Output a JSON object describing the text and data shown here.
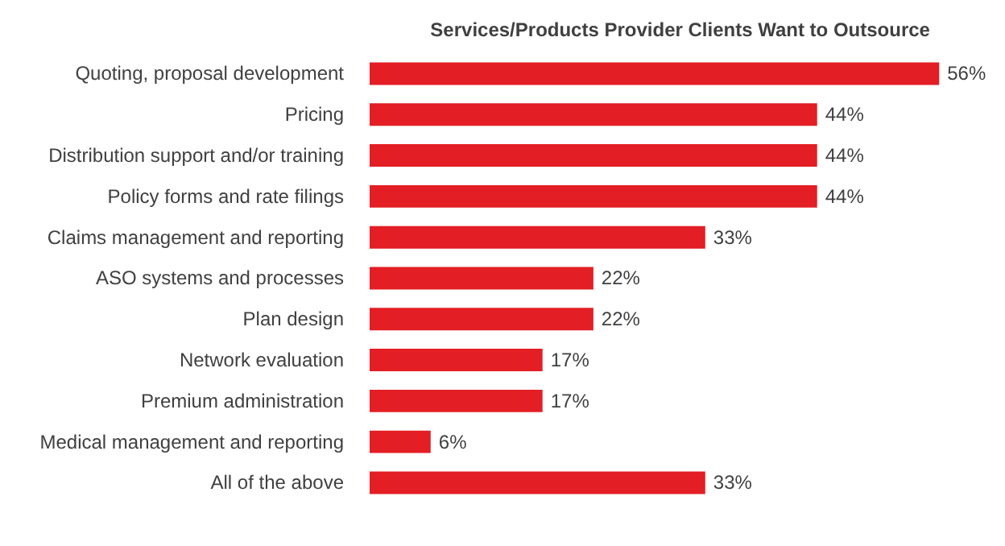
{
  "chart_data": {
    "type": "bar",
    "orientation": "horizontal",
    "title": "Services/Products  Provider Clients Want to Outsource",
    "categories": [
      "Quoting, proposal development",
      "Pricing",
      "Distribution support and/or training",
      "Policy forms and rate filings",
      "Claims management and reporting",
      "ASO systems and processes",
      "Plan design",
      "Network evaluation",
      "Premium administration",
      "Medical management and reporting",
      "All of the above"
    ],
    "values": [
      56,
      44,
      44,
      44,
      33,
      22,
      22,
      17,
      17,
      6,
      33
    ],
    "value_labels": [
      "56%",
      "44%",
      "44%",
      "44%",
      "33%",
      "22%",
      "22%",
      "17%",
      "17%",
      "6%",
      "33%"
    ],
    "color": "#e31e24",
    "grid": false
  }
}
